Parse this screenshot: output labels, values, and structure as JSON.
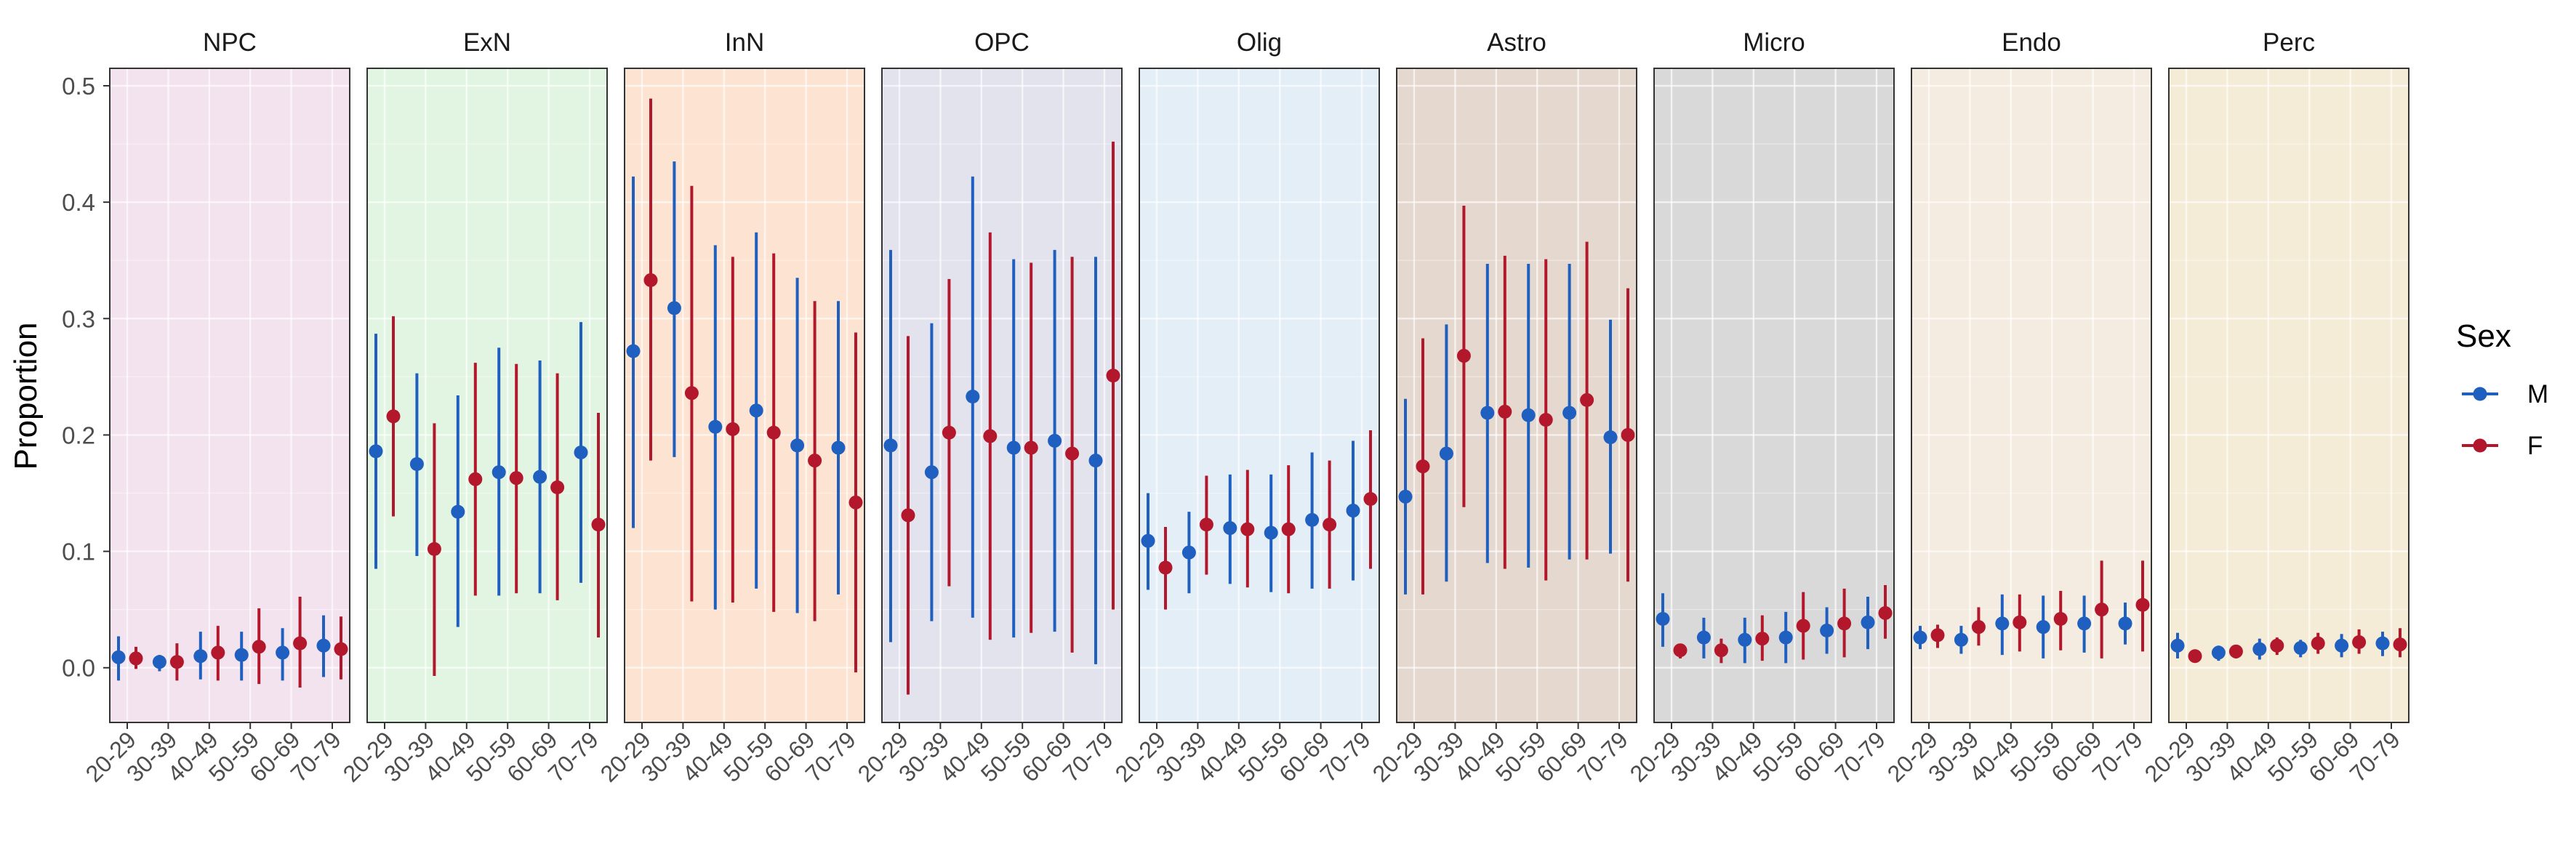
{
  "chart_data": {
    "type": "faceted errorbar",
    "ylabel": "Proportion",
    "xlabel": "",
    "ylim": [
      -0.047,
      0.515
    ],
    "y_ticks": [
      "0.0",
      "0.1",
      "0.2",
      "0.3",
      "0.4",
      "0.5"
    ],
    "y_tick_values": [
      0.0,
      0.1,
      0.2,
      0.3,
      0.4,
      0.5
    ],
    "categories": [
      "20-29",
      "30-39",
      "40-49",
      "50-59",
      "60-69",
      "70-79"
    ],
    "grid": true,
    "legend": {
      "title": "Sex",
      "position": "right",
      "entries": [
        {
          "label": "M",
          "color": "#1f5fbf"
        },
        {
          "label": "F",
          "color": "#b3172b"
        }
      ]
    },
    "panels": [
      {
        "title": "NPC",
        "bg": "#f3e3ee",
        "M": {
          "mean": [
            0.009,
            0.005,
            0.01,
            0.011,
            0.013,
            0.019
          ],
          "lo": [
            -0.011,
            -0.003,
            -0.01,
            -0.011,
            -0.011,
            -0.008
          ],
          "hi": [
            0.027,
            0.011,
            0.031,
            0.031,
            0.034,
            0.045
          ]
        },
        "F": {
          "mean": [
            0.008,
            0.005,
            0.013,
            0.018,
            0.021,
            0.016
          ],
          "lo": [
            -0.001,
            -0.011,
            -0.011,
            -0.014,
            -0.017,
            -0.01
          ],
          "hi": [
            0.018,
            0.021,
            0.036,
            0.051,
            0.061,
            0.044
          ]
        }
      },
      {
        "title": "ExN",
        "bg": "#e2f5e2",
        "M": {
          "mean": [
            0.186,
            0.175,
            0.134,
            0.168,
            0.164,
            0.185
          ],
          "lo": [
            0.085,
            0.096,
            0.035,
            0.062,
            0.064,
            0.073
          ],
          "hi": [
            0.287,
            0.253,
            0.234,
            0.275,
            0.264,
            0.297
          ]
        },
        "F": {
          "mean": [
            0.216,
            0.102,
            0.162,
            0.163,
            0.155,
            0.123
          ],
          "lo": [
            0.13,
            -0.007,
            0.062,
            0.064,
            0.058,
            0.026
          ],
          "hi": [
            0.302,
            0.21,
            0.262,
            0.261,
            0.253,
            0.219
          ]
        }
      },
      {
        "title": "InN",
        "bg": "#fde3d2",
        "M": {
          "mean": [
            0.272,
            0.309,
            0.207,
            0.221,
            0.191,
            0.189
          ],
          "lo": [
            0.12,
            0.181,
            0.05,
            0.068,
            0.047,
            0.063
          ],
          "hi": [
            0.422,
            0.435,
            0.363,
            0.374,
            0.335,
            0.315
          ]
        },
        "F": {
          "mean": [
            0.333,
            0.236,
            0.205,
            0.202,
            0.178,
            0.142
          ],
          "lo": [
            0.178,
            0.057,
            0.056,
            0.048,
            0.04,
            -0.004
          ],
          "hi": [
            0.489,
            0.414,
            0.353,
            0.356,
            0.315,
            0.288
          ]
        }
      },
      {
        "title": "OPC",
        "bg": "#e3e3ed",
        "M": {
          "mean": [
            0.191,
            0.168,
            0.233,
            0.189,
            0.195,
            0.178
          ],
          "lo": [
            0.022,
            0.04,
            0.043,
            0.026,
            0.031,
            0.003
          ],
          "hi": [
            0.359,
            0.296,
            0.422,
            0.351,
            0.359,
            0.353
          ]
        },
        "F": {
          "mean": [
            0.131,
            0.202,
            0.199,
            0.189,
            0.184,
            0.251
          ],
          "lo": [
            -0.023,
            0.07,
            0.024,
            0.03,
            0.013,
            0.05
          ],
          "hi": [
            0.285,
            0.334,
            0.374,
            0.348,
            0.353,
            0.452
          ]
        }
      },
      {
        "title": "Olig",
        "bg": "#e4eef7",
        "M": {
          "mean": [
            0.109,
            0.099,
            0.12,
            0.116,
            0.127,
            0.135
          ],
          "lo": [
            0.067,
            0.064,
            0.072,
            0.065,
            0.068,
            0.075
          ],
          "hi": [
            0.15,
            0.134,
            0.166,
            0.166,
            0.185,
            0.195
          ]
        },
        "F": {
          "mean": [
            0.086,
            0.123,
            0.119,
            0.119,
            0.123,
            0.145
          ],
          "lo": [
            0.05,
            0.08,
            0.069,
            0.064,
            0.068,
            0.085
          ],
          "hi": [
            0.121,
            0.165,
            0.17,
            0.174,
            0.178,
            0.204
          ]
        }
      },
      {
        "title": "Astro",
        "bg": "#e5d8ce",
        "M": {
          "mean": [
            0.147,
            0.184,
            0.219,
            0.217,
            0.219,
            0.198
          ],
          "lo": [
            0.063,
            0.074,
            0.09,
            0.086,
            0.093,
            0.098
          ],
          "hi": [
            0.231,
            0.295,
            0.347,
            0.347,
            0.347,
            0.299
          ]
        },
        "F": {
          "mean": [
            0.173,
            0.268,
            0.22,
            0.213,
            0.23,
            0.2
          ],
          "lo": [
            0.063,
            0.138,
            0.085,
            0.075,
            0.093,
            0.074
          ],
          "hi": [
            0.283,
            0.397,
            0.354,
            0.351,
            0.366,
            0.326
          ]
        }
      },
      {
        "title": "Micro",
        "bg": "#d9d9d9",
        "M": {
          "mean": [
            0.042,
            0.026,
            0.024,
            0.026,
            0.032,
            0.039
          ],
          "lo": [
            0.018,
            0.008,
            0.004,
            0.004,
            0.012,
            0.016
          ],
          "hi": [
            0.064,
            0.043,
            0.043,
            0.048,
            0.052,
            0.061
          ]
        },
        "F": {
          "mean": [
            0.015,
            0.015,
            0.025,
            0.036,
            0.038,
            0.047
          ],
          "lo": [
            0.008,
            0.004,
            0.006,
            0.007,
            0.009,
            0.025
          ],
          "hi": [
            0.02,
            0.025,
            0.045,
            0.065,
            0.068,
            0.071
          ]
        }
      },
      {
        "title": "Endo",
        "bg": "#f4ece0",
        "M": {
          "mean": [
            0.026,
            0.024,
            0.038,
            0.035,
            0.038,
            0.038
          ],
          "lo": [
            0.016,
            0.012,
            0.011,
            0.008,
            0.013,
            0.02
          ],
          "hi": [
            0.036,
            0.036,
            0.063,
            0.062,
            0.062,
            0.056
          ]
        },
        "F": {
          "mean": [
            0.028,
            0.035,
            0.039,
            0.042,
            0.05,
            0.054
          ],
          "lo": [
            0.017,
            0.019,
            0.014,
            0.015,
            0.008,
            0.014
          ],
          "hi": [
            0.037,
            0.052,
            0.063,
            0.066,
            0.092,
            0.092
          ]
        }
      },
      {
        "title": "Perc",
        "bg": "#f5ecd8",
        "M": {
          "mean": [
            0.019,
            0.013,
            0.016,
            0.017,
            0.019,
            0.021
          ],
          "lo": [
            0.008,
            0.006,
            0.007,
            0.009,
            0.009,
            0.01
          ],
          "hi": [
            0.03,
            0.019,
            0.025,
            0.024,
            0.029,
            0.031
          ]
        },
        "F": {
          "mean": [
            0.01,
            0.014,
            0.019,
            0.021,
            0.022,
            0.02
          ],
          "lo": [
            0.006,
            0.008,
            0.011,
            0.012,
            0.012,
            0.009
          ],
          "hi": [
            0.013,
            0.019,
            0.026,
            0.03,
            0.033,
            0.034
          ]
        }
      }
    ]
  }
}
